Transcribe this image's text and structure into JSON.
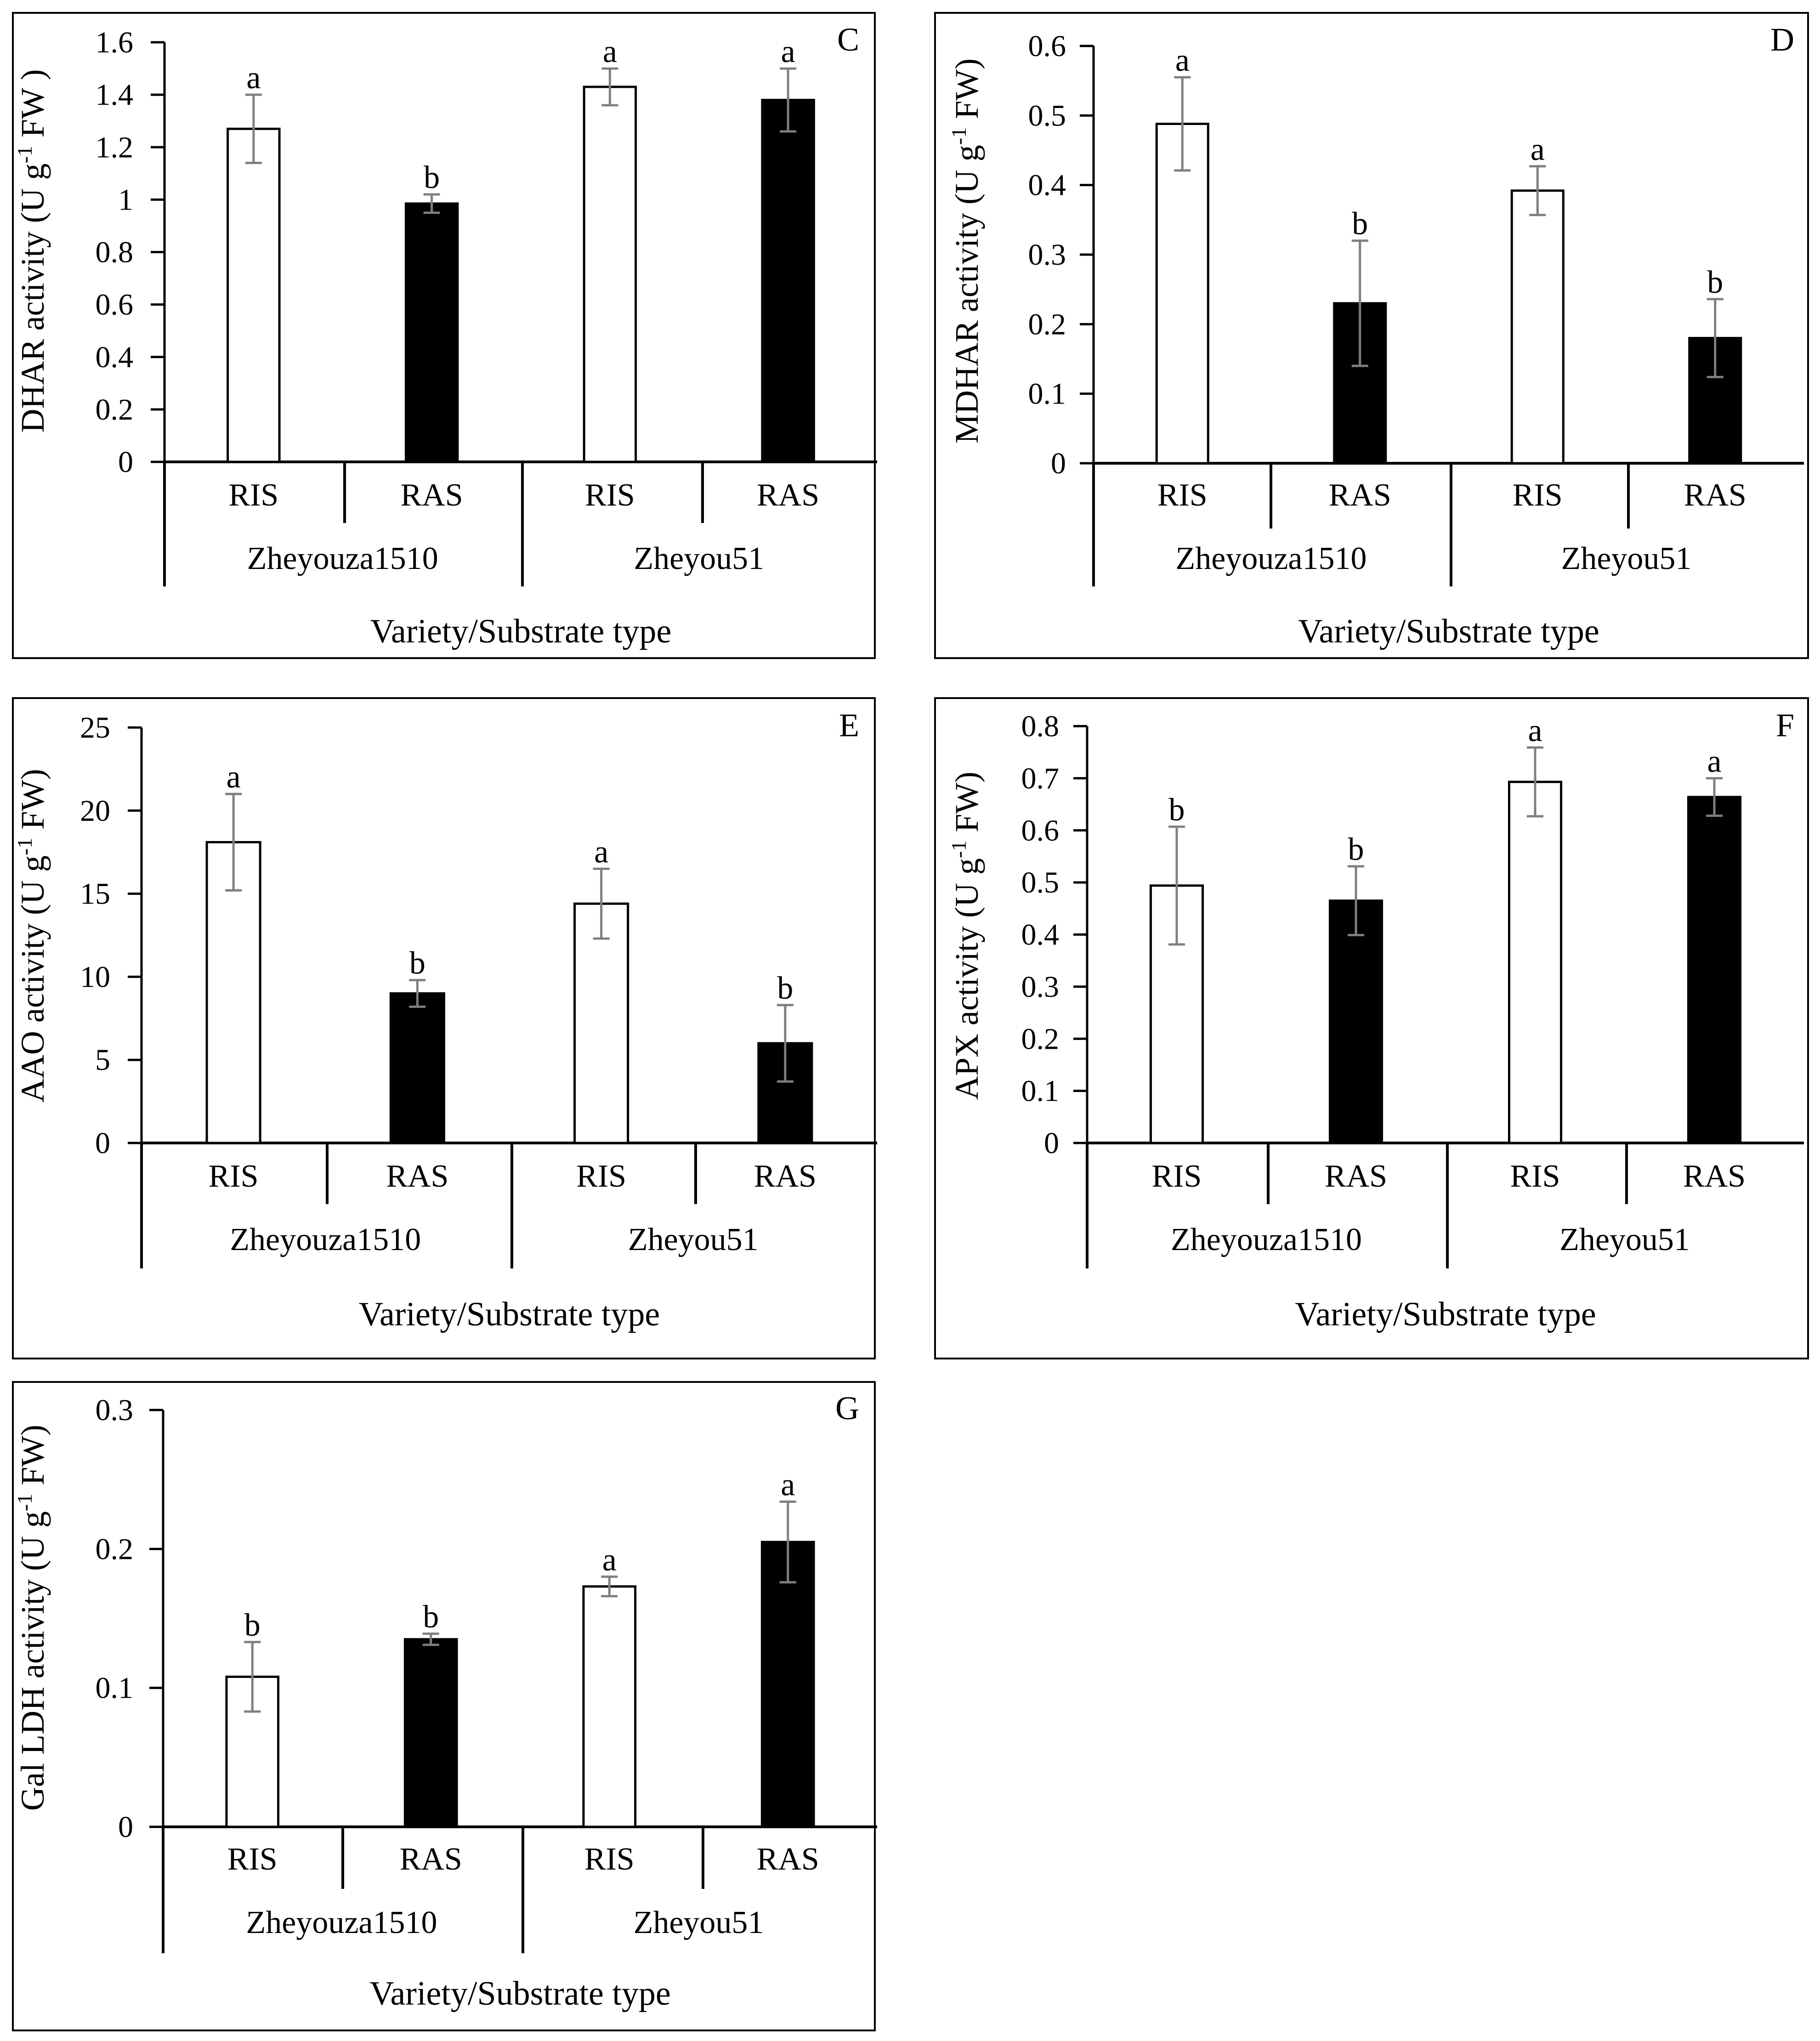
{
  "colors": {
    "ris_fill": "#ffffff",
    "ras_fill": "#000000",
    "bar_stroke": "#000000",
    "error_bar": "#7f7f7f",
    "panel_border": "#000000"
  },
  "chart_data": [
    {
      "panel": "C",
      "type": "bar",
      "ylabel": "DHAR activity (U g-1 FW )",
      "ylabel_parts": [
        "DHAR activity (U g",
        "-1",
        " FW )"
      ],
      "xlabel": "Variety/Substrate type",
      "ylim": [
        0,
        1.6
      ],
      "yticks": [
        0,
        0.2,
        0.4,
        0.6,
        0.8,
        1,
        1.2,
        1.4,
        1.6
      ],
      "ytick_labels": [
        "0",
        "0.2",
        "0.4",
        "0.6",
        "0.8",
        "1",
        "1.2",
        "1.4",
        "1.6"
      ],
      "groups": [
        "Zheyouza1510",
        "Zheyou51"
      ],
      "categories": [
        "RIS",
        "RAS",
        "RIS",
        "RAS"
      ],
      "values": [
        1.27,
        0.985,
        1.43,
        1.38
      ],
      "errors": [
        0.13,
        0.035,
        0.07,
        0.12
      ],
      "letters": [
        "a",
        "b",
        "a",
        "a"
      ]
    },
    {
      "panel": "D",
      "type": "bar",
      "ylabel": "MDHAR activity (U g-1 FW)",
      "ylabel_parts": [
        "MDHAR activity (U g",
        "-1",
        " FW)"
      ],
      "xlabel": "Variety/Substrate type",
      "ylim": [
        0,
        0.6
      ],
      "yticks": [
        0,
        0.1,
        0.2,
        0.3,
        0.4,
        0.5,
        0.6
      ],
      "ytick_labels": [
        "0",
        "0.1",
        "0.2",
        "0.3",
        "0.4",
        "0.5",
        "0.6"
      ],
      "groups": [
        "Zheyouza1510",
        "Zheyou51"
      ],
      "categories": [
        "RIS",
        "RAS",
        "RIS",
        "RAS"
      ],
      "values": [
        0.488,
        0.23,
        0.392,
        0.18
      ],
      "errors": [
        0.067,
        0.09,
        0.035,
        0.056
      ],
      "letters": [
        "a",
        "b",
        "a",
        "b"
      ]
    },
    {
      "panel": "E",
      "type": "bar",
      "ylabel": "AAO activity (U g-1 FW)",
      "ylabel_parts": [
        "AAO activity (U g",
        "-1",
        " FW)"
      ],
      "xlabel": "Variety/Substrate type",
      "ylim": [
        0,
        25
      ],
      "yticks": [
        0,
        5,
        10,
        15,
        20,
        25
      ],
      "ytick_labels": [
        "0",
        "5",
        "10",
        "15",
        "20",
        "25"
      ],
      "groups": [
        "Zheyouza1510",
        "Zheyou51"
      ],
      "categories": [
        "RIS",
        "RAS",
        "RIS",
        "RAS"
      ],
      "values": [
        18.1,
        9.0,
        14.4,
        6.0
      ],
      "errors": [
        2.9,
        0.8,
        2.1,
        2.3
      ],
      "letters": [
        "a",
        "b",
        "a",
        "b"
      ]
    },
    {
      "panel": "F",
      "type": "bar",
      "ylabel": "APX activity (U g-1 FW)",
      "ylabel_parts": [
        "APX activity (U g",
        "-1",
        " FW)"
      ],
      "xlabel": "Variety/Substrate type",
      "ylim": [
        0,
        0.8
      ],
      "yticks": [
        0,
        0.1,
        0.2,
        0.3,
        0.4,
        0.5,
        0.6,
        0.7,
        0.8
      ],
      "ytick_labels": [
        "0",
        "0.1",
        "0.2",
        "0.3",
        "0.4",
        "0.5",
        "0.6",
        "0.7",
        "0.8"
      ],
      "groups": [
        "Zheyouza1510",
        "Zheyou51"
      ],
      "categories": [
        "RIS",
        "RAS",
        "RIS",
        "RAS"
      ],
      "values": [
        0.494,
        0.465,
        0.693,
        0.664
      ],
      "errors": [
        0.113,
        0.066,
        0.066,
        0.036
      ],
      "letters": [
        "b",
        "b",
        "a",
        "a"
      ]
    },
    {
      "panel": "G",
      "type": "bar",
      "ylabel": "Gal LDH activity (U g-1 FW)",
      "ylabel_parts": [
        "Gal LDH activity (U g",
        "-1",
        " FW)"
      ],
      "xlabel": "Variety/Substrate type",
      "ylim": [
        0,
        0.3
      ],
      "yticks": [
        0,
        0.1,
        0.2,
        0.3
      ],
      "ytick_labels": [
        "0",
        "0.1",
        "0.2",
        "0.3"
      ],
      "groups": [
        "Zheyouza1510",
        "Zheyou51"
      ],
      "categories": [
        "RIS",
        "RAS",
        "RIS",
        "RAS"
      ],
      "values": [
        0.108,
        0.135,
        0.173,
        0.205
      ],
      "errors": [
        0.025,
        0.004,
        0.007,
        0.029
      ],
      "letters": [
        "b",
        "b",
        "a",
        "a"
      ]
    }
  ]
}
